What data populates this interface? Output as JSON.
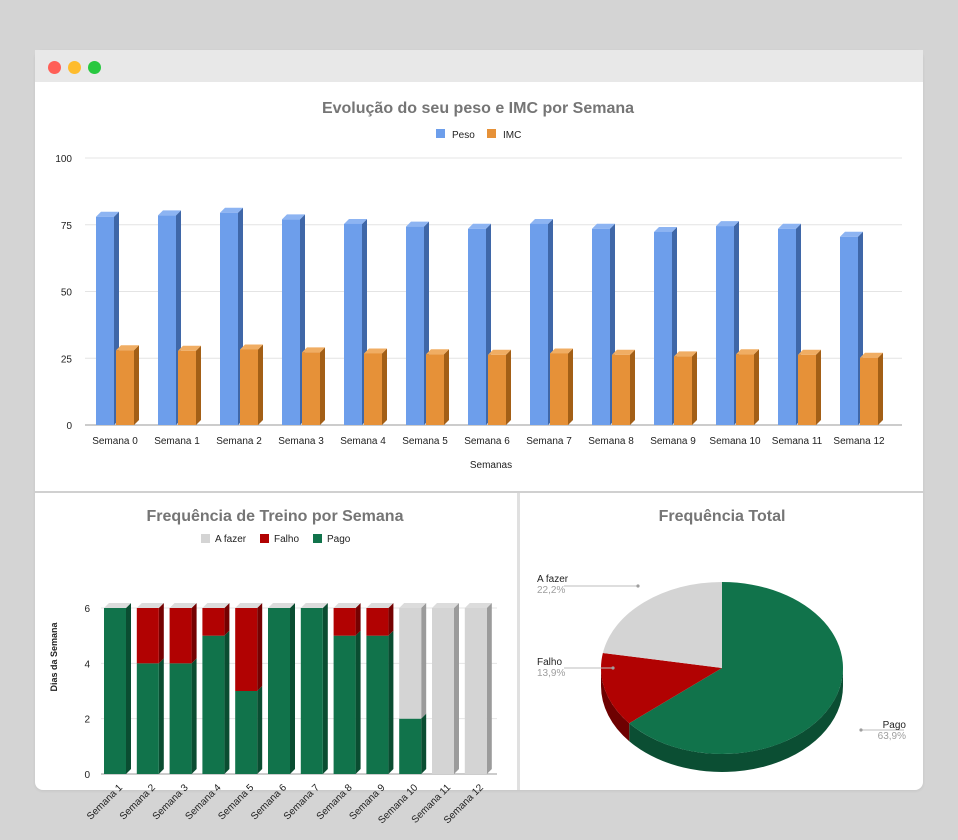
{
  "window": {
    "controls": [
      "close",
      "minimize",
      "zoom"
    ]
  },
  "chart_data": [
    {
      "type": "bar",
      "title": "Evolução do seu peso e IMC por Semana",
      "xlabel": "Semanas",
      "ylabel": "",
      "categories": [
        "Semana 0",
        "Semana 1",
        "Semana 2",
        "Semana 3",
        "Semana 4",
        "Semana 5",
        "Semana 6",
        "Semana 7",
        "Semana 8",
        "Semana 9",
        "Semana 10",
        "Semana 11",
        "Semana 12"
      ],
      "series": [
        {
          "name": "Peso",
          "color": "#6d9eeb",
          "side_color": "#3f67a8",
          "top_color": "#8db4f2",
          "values": [
            78,
            78.5,
            79.5,
            77,
            75.3,
            74.3,
            73.5,
            75.3,
            73.5,
            72.3,
            74.5,
            73.5,
            70.5
          ]
        },
        {
          "name": "IMC",
          "color": "#e69138",
          "side_color": "#a35f16",
          "top_color": "#f0ad63",
          "values": [
            28,
            27.8,
            28.3,
            27.2,
            26.8,
            26.5,
            26.3,
            26.8,
            26.3,
            25.7,
            26.5,
            26.3,
            25.2
          ]
        }
      ],
      "y_ticks": [
        "0",
        "25",
        "50",
        "75",
        "100"
      ],
      "ylim": [
        0,
        100
      ],
      "grid": true,
      "legend_position": "top-center",
      "style": "3d-bar"
    },
    {
      "type": "bar",
      "stacked": true,
      "title": "Frequência de Treino por Semana",
      "xlabel": "",
      "ylabel": "Dias da Semana",
      "categories": [
        "Semana 1",
        "Semana 2",
        "Semana 3",
        "Semana 4",
        "Semana 5",
        "Semana 6",
        "Semana 7",
        "Semana 8",
        "Semana 9",
        "Semana 10",
        "Semana 11",
        "Semana 12"
      ],
      "series": [
        {
          "name": "Pago",
          "color": "#11734b",
          "side_color": "#0a4d31",
          "values": [
            6,
            4,
            4,
            5,
            3,
            6,
            6,
            5,
            5,
            2,
            0,
            0
          ]
        },
        {
          "name": "Falho",
          "color": "#b10202",
          "side_color": "#750101",
          "values": [
            0,
            2,
            2,
            1,
            3,
            0,
            0,
            1,
            1,
            0,
            0,
            0
          ]
        },
        {
          "name": "A fazer",
          "color": "#d4d4d4",
          "side_color": "#9b9b9b",
          "values": [
            0,
            0,
            0,
            0,
            0,
            0,
            0,
            0,
            0,
            4,
            6,
            6
          ]
        }
      ],
      "legend_order": [
        "A fazer",
        "Falho",
        "Pago"
      ],
      "y_ticks": [
        "0",
        "2",
        "4",
        "6"
      ],
      "ylim": [
        0,
        6
      ],
      "grid": true,
      "legend_position": "top-center",
      "style": "3d-bar"
    },
    {
      "type": "pie",
      "title": "Frequência Total",
      "slices": [
        {
          "name": "Pago",
          "value": 63.9,
          "label": "63,9%",
          "color": "#11734b",
          "side_color": "#0b4e33"
        },
        {
          "name": "Falho",
          "value": 13.9,
          "label": "13,9%",
          "color": "#b10202",
          "side_color": "#6e0101"
        },
        {
          "name": "A fazer",
          "value": 22.2,
          "label": "22,2%",
          "color": "#d4d4d4",
          "side_color": "#9a9a9a"
        }
      ],
      "style": "3d-pie"
    }
  ]
}
